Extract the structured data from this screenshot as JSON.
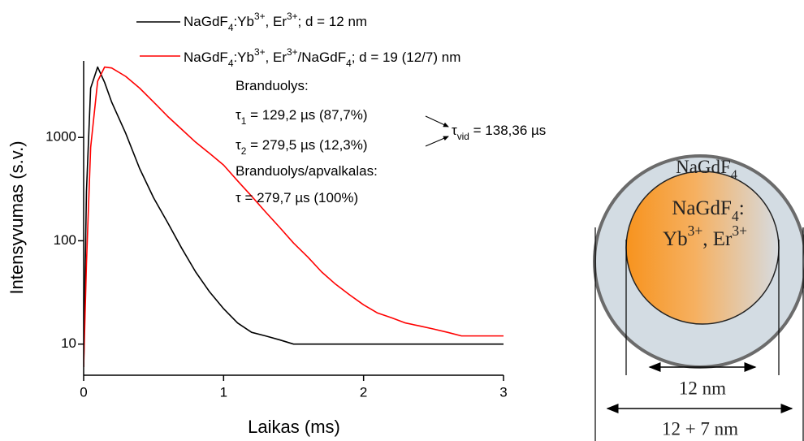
{
  "chart_data": {
    "type": "line",
    "x_label": "Laikas (ms)",
    "y_label": "Intensyvumas (s.v.)",
    "x": [
      0,
      0.02,
      0.05,
      0.1,
      0.15,
      0.2,
      0.3,
      0.4,
      0.5,
      0.6,
      0.7,
      0.8,
      0.9,
      1.0,
      1.1,
      1.2,
      1.3,
      1.4,
      1.5,
      1.6,
      1.7,
      1.8,
      1.9,
      2.0,
      2.1,
      2.2,
      2.3,
      2.4,
      2.5,
      2.6,
      2.7,
      2.8,
      2.9,
      3.0
    ],
    "series": [
      {
        "name": "NaGdF4:Yb3+, Er3+; d = 12 nm",
        "color": "#000000",
        "values": [
          6,
          300,
          3000,
          4800,
          3400,
          2200,
          1100,
          500,
          260,
          150,
          85,
          50,
          32,
          22,
          16,
          13,
          12,
          11,
          10,
          10,
          10,
          10,
          10,
          10,
          10,
          10,
          10,
          10,
          10,
          10,
          10,
          10,
          10,
          10
        ]
      },
      {
        "name": "NaGdF4:Yb3+, Er3+/NaGdF4; d = 19 (12/7) nm",
        "color": "#ff0000",
        "values": [
          6,
          60,
          800,
          3500,
          4800,
          4700,
          3900,
          3000,
          2200,
          1600,
          1200,
          900,
          700,
          540,
          380,
          270,
          190,
          135,
          95,
          70,
          50,
          38,
          30,
          24,
          20,
          18,
          16,
          15,
          14,
          13,
          12,
          12,
          12,
          12
        ]
      }
    ],
    "xlim": [
      0,
      3
    ],
    "xticks": [
      0,
      1,
      2,
      3
    ],
    "ylim": [
      5,
      5500
    ],
    "yticks": [
      10,
      100,
      1000
    ],
    "log_y": true,
    "annotations": [
      "Branduolys:",
      "τ1 = 129,2 µs (87,7%)",
      "τ2 = 279,5 µs (12,3%)",
      "τvid = 138,36 µs",
      "Branduolys/apvalkalas:",
      "τ = 279,7 µs (100%)"
    ]
  },
  "diagram": {
    "shell_label": "NaGdF4",
    "core_label_1": "NaGdF4:",
    "core_label_2": "Yb3+, Er3+",
    "core_size": "12 nm",
    "total_size": "12 + 7 nm"
  }
}
